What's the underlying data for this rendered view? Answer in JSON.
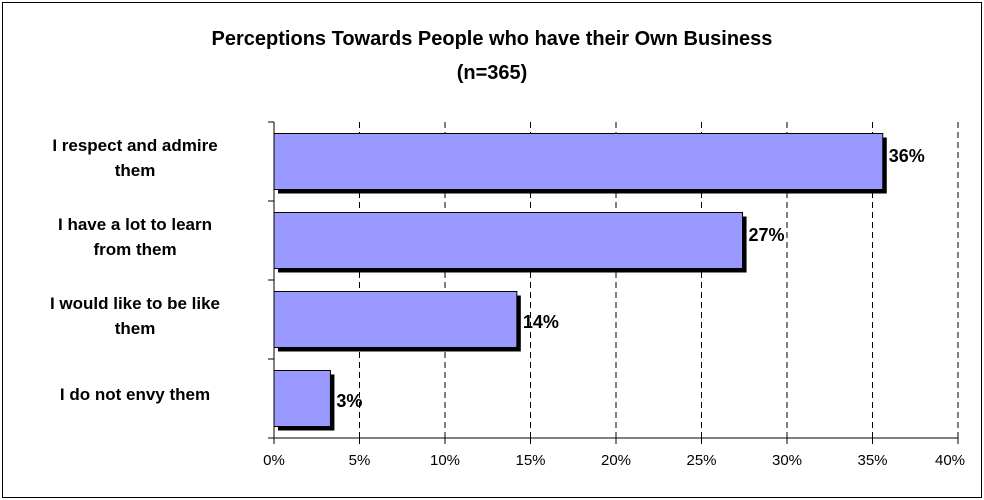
{
  "chart_data": {
    "type": "bar",
    "orientation": "horizontal",
    "title": "Perceptions Towards People who have their Own Business",
    "subtitle": "(n=365)",
    "categories": [
      [
        "I respect and admire",
        "them"
      ],
      [
        "I have a lot to learn",
        "from them"
      ],
      [
        "I would like to be like",
        "them"
      ],
      [
        "I do not envy them"
      ]
    ],
    "values": [
      35.6,
      27.4,
      14.2,
      3.3
    ],
    "value_labels": [
      "36%",
      "27%",
      "14%",
      "3%"
    ],
    "xlim": [
      0,
      40
    ],
    "x_ticks": [
      0,
      5,
      10,
      15,
      20,
      25,
      30,
      35,
      40
    ],
    "x_tick_labels": [
      "0%",
      "5%",
      "10%",
      "15%",
      "20%",
      "25%",
      "30%",
      "35%",
      "40%"
    ],
    "xlabel": "",
    "ylabel": "",
    "grid": "vertical dashed",
    "legend": "none",
    "colors": {
      "bar": "#9999ff",
      "shadow": "#000000",
      "grid": "#000000"
    }
  }
}
